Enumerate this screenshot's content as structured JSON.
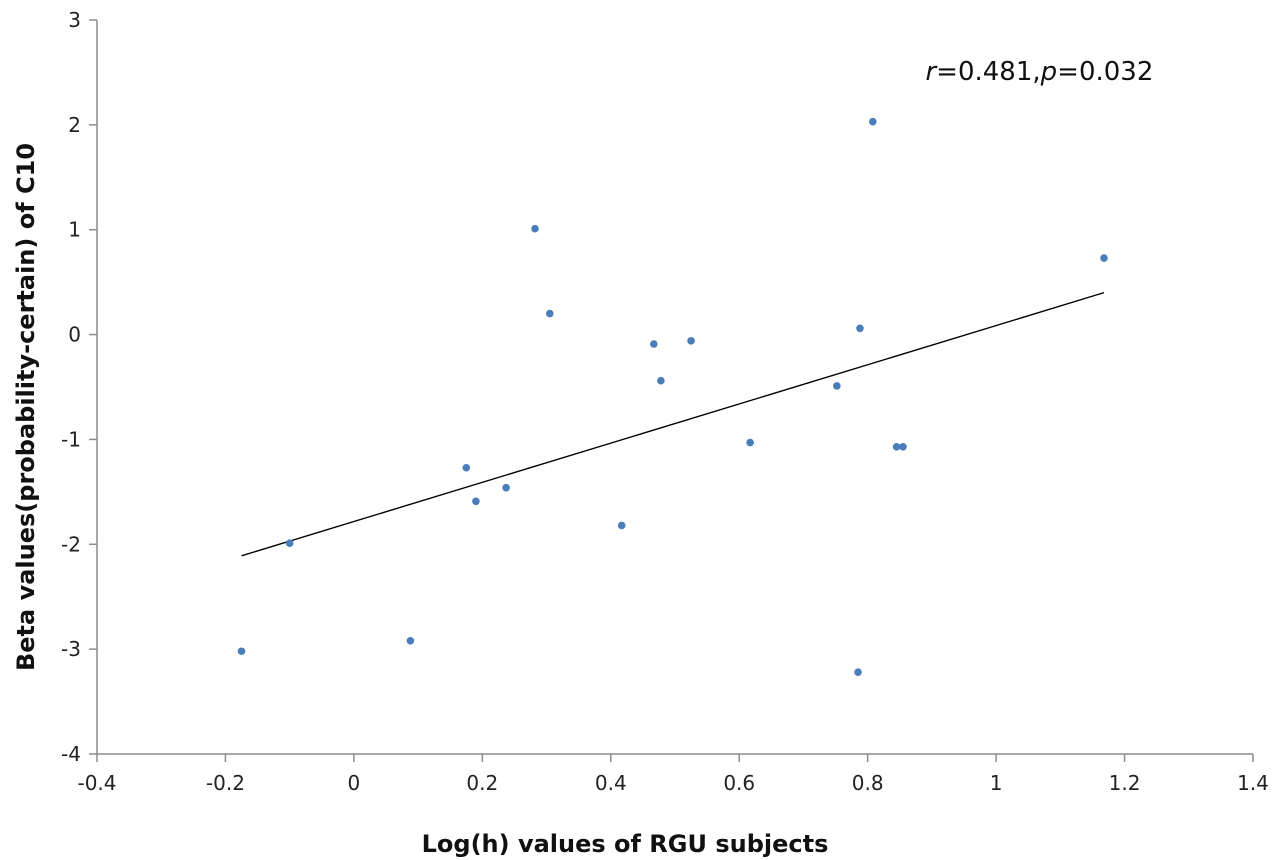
{
  "chart_data": {
    "type": "scatter",
    "title": "",
    "xlabel": "Log(h) values of RGU subjects",
    "ylabel": "Beta values(probability-certain) of C10",
    "xlim": [
      -0.4,
      1.4
    ],
    "ylim": [
      -4,
      3
    ],
    "xticks": [
      -0.4,
      -0.2,
      0,
      0.2,
      0.4,
      0.6,
      0.8,
      1,
      1.2,
      1.4
    ],
    "yticks": [
      -4,
      -3,
      -2,
      -1,
      0,
      1,
      2,
      3
    ],
    "xtick_labels": [
      "-0.4",
      "-0.2",
      "0",
      "0.2",
      "0.4",
      "0.6",
      "0.8",
      "1",
      "1.2",
      "1.4"
    ],
    "ytick_labels": [
      "-4",
      "-3",
      "-2",
      "-1",
      "0",
      "1",
      "2",
      "3"
    ],
    "grid": false,
    "legend": "none",
    "marker_color": "#4a7ebb",
    "line_color": "#000000",
    "series": [
      {
        "points": [
          {
            "x": -0.175,
            "y": -3.02
          },
          {
            "x": -0.1,
            "y": -1.99
          },
          {
            "x": 0.088,
            "y": -2.92
          },
          {
            "x": 0.175,
            "y": -1.27
          },
          {
            "x": 0.19,
            "y": -1.59
          },
          {
            "x": 0.237,
            "y": -1.46
          },
          {
            "x": 0.282,
            "y": 1.01
          },
          {
            "x": 0.305,
            "y": 0.2
          },
          {
            "x": 0.417,
            "y": -1.82
          },
          {
            "x": 0.467,
            "y": -0.09
          },
          {
            "x": 0.478,
            "y": -0.44
          },
          {
            "x": 0.525,
            "y": -0.06
          },
          {
            "x": 0.617,
            "y": -1.03
          },
          {
            "x": 0.752,
            "y": -0.49
          },
          {
            "x": 0.785,
            "y": -3.22
          },
          {
            "x": 0.788,
            "y": 0.06
          },
          {
            "x": 0.808,
            "y": 2.03
          },
          {
            "x": 0.845,
            "y": -1.07
          },
          {
            "x": 0.855,
            "y": -1.07
          },
          {
            "x": 1.168,
            "y": 0.73
          }
        ]
      }
    ],
    "trendline": {
      "x": [
        -0.175,
        1.168
      ],
      "y": [
        -2.11,
        0.4
      ]
    },
    "annotation": {
      "r_symbol": "r",
      "r_value": "=0.481,",
      "p_symbol": "p",
      "p_value": "=0.032",
      "x": 0.89,
      "y": 2.43
    }
  }
}
